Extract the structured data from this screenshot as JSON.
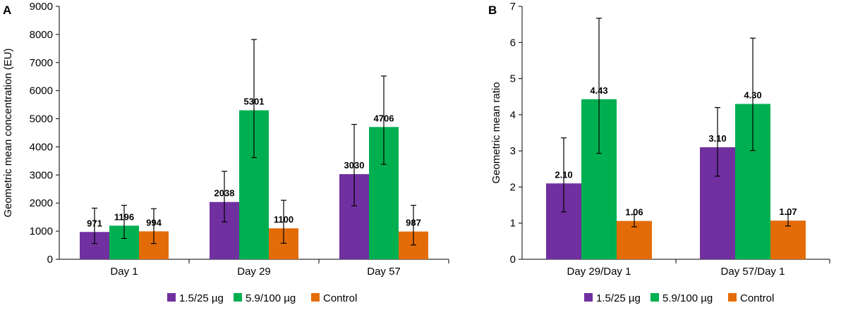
{
  "panels": [
    {
      "letter": "A"
    },
    {
      "letter": "B"
    }
  ],
  "chart_data": [
    {
      "type": "bar",
      "panel": "A",
      "title": "",
      "xlabel": "",
      "ylabel": "Geometric mean concentration (EU)",
      "ylim": [
        0,
        9000
      ],
      "yticks": [
        0,
        1000,
        2000,
        3000,
        4000,
        5000,
        6000,
        7000,
        8000,
        9000
      ],
      "grid": false,
      "legend_position": "bottom",
      "categories": [
        "Day 1",
        "Day 29",
        "Day 57"
      ],
      "series": [
        {
          "name": "1.5/25 µg",
          "color": "#7030a0",
          "values": [
            971,
            2038,
            3030
          ],
          "labels": [
            "971",
            "2038",
            "3030"
          ],
          "err_low": [
            560,
            1330,
            1900
          ],
          "err_high": [
            1820,
            3130,
            4800
          ]
        },
        {
          "name": "5.9/100 µg",
          "color": "#00b050",
          "values": [
            1196,
            5301,
            4706
          ],
          "labels": [
            "1196",
            "5301",
            "4706"
          ],
          "err_low": [
            740,
            3620,
            3380
          ],
          "err_high": [
            1920,
            7820,
            6520
          ]
        },
        {
          "name": "Control",
          "color": "#e36c09",
          "values": [
            994,
            1100,
            987
          ],
          "labels": [
            "994",
            "1100",
            "987"
          ],
          "err_low": [
            560,
            570,
            510
          ],
          "err_high": [
            1800,
            2100,
            1920
          ]
        }
      ]
    },
    {
      "type": "bar",
      "panel": "B",
      "title": "",
      "xlabel": "",
      "ylabel": "Geometric mean ratio",
      "ylim": [
        0,
        7
      ],
      "yticks": [
        0,
        1,
        2,
        3,
        4,
        5,
        6,
        7
      ],
      "grid": false,
      "legend_position": "bottom",
      "categories": [
        "Day 29/Day 1",
        "Day 57/Day 1"
      ],
      "series": [
        {
          "name": "1.5/25 µg",
          "color": "#7030a0",
          "values": [
            2.1,
            3.1
          ],
          "labels": [
            "2.10",
            "3.10"
          ],
          "err_low": [
            1.31,
            2.3
          ],
          "err_high": [
            3.36,
            4.2
          ]
        },
        {
          "name": "5.9/100 µg",
          "color": "#00b050",
          "values": [
            4.43,
            4.3
          ],
          "labels": [
            "4.43",
            "4.30"
          ],
          "err_low": [
            2.93,
            3.01
          ],
          "err_high": [
            6.67,
            6.12
          ]
        },
        {
          "name": "Control",
          "color": "#e36c09",
          "values": [
            1.06,
            1.07
          ],
          "labels": [
            "1.06",
            "1.07"
          ],
          "err_low": [
            0.9,
            0.92
          ],
          "err_high": [
            1.24,
            1.24
          ]
        }
      ]
    }
  ]
}
